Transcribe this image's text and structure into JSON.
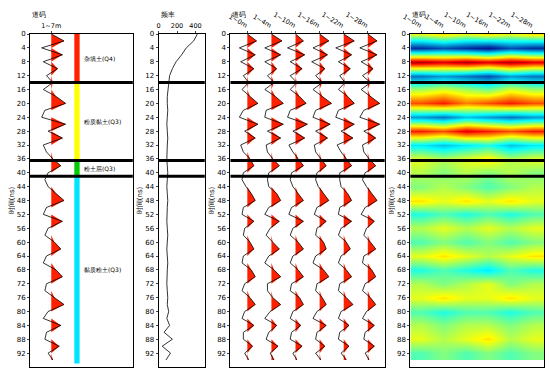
{
  "time": {
    "title": "时间(ns)",
    "ylim": [
      96,
      0
    ],
    "yticks": [
      0,
      4,
      8,
      12,
      16,
      20,
      24,
      28,
      32,
      36,
      40,
      44,
      48,
      52,
      56,
      60,
      64,
      68,
      72,
      76,
      80,
      84,
      88,
      92
    ],
    "samples": [
      0,
      2,
      4,
      6,
      8,
      10,
      12,
      14,
      16,
      18,
      20,
      22,
      24,
      26,
      28,
      30,
      32,
      34,
      36,
      38,
      40,
      42,
      44,
      46,
      48,
      50,
      52,
      54,
      56,
      58,
      60,
      62,
      64,
      66,
      68,
      70,
      72,
      74,
      76,
      78,
      80,
      82,
      84,
      86,
      88,
      90,
      92,
      94
    ]
  },
  "boundaries": [
    14,
    36.5,
    41
  ],
  "chart_data": [
    {
      "type": "wiggle",
      "header": "道码",
      "color": "#ff2000",
      "series": [
        {
          "name": "1~7m",
          "values": [
            0,
            0.8,
            -0.6,
            0.7,
            -0.5,
            0.4,
            -0.3,
            0.1,
            -0.5,
            0.3,
            0.9,
            -0.4,
            -0.6,
            0.9,
            -0.2,
            0.7,
            -0.5,
            -0.3,
            0.1,
            0.6,
            -0.2,
            -0.4,
            -0.2,
            0.3,
            0.8,
            -0.3,
            -0.5,
            0.7,
            -0.2,
            -0.4,
            0.2,
            0.6,
            -0.3,
            -0.5,
            0.3,
            0.7,
            -0.3,
            -0.4,
            0.2,
            0.8,
            -0.2,
            -0.5,
            0.6,
            -0.3,
            -0.4,
            0.5,
            -0.2,
            0.1
          ]
        }
      ],
      "layers": [
        {
          "label": "杂填土(Q4)",
          "ylim": [
            0,
            14
          ],
          "color": "#ff2200"
        },
        {
          "label": "粉质黏土(Q3)",
          "ylim": [
            14,
            36.5
          ],
          "color": "#ffff00"
        },
        {
          "label": "粉土层(Q3)",
          "ylim": [
            36.5,
            41
          ],
          "color": "#00cc00"
        },
        {
          "label": "黏质粉土(Q3)",
          "ylim": [
            41,
            95
          ],
          "color": "#00e5ff"
        }
      ]
    },
    {
      "type": "line",
      "header": "频率",
      "color": "#000000",
      "xlim": [
        0,
        500
      ],
      "xticks": [
        0,
        200,
        400
      ],
      "values": [
        420,
        380,
        300,
        250,
        190,
        150,
        120,
        110,
        100,
        95,
        95,
        100,
        95,
        90,
        95,
        100,
        95,
        90,
        90,
        95,
        100,
        95,
        90,
        95,
        100,
        95,
        90,
        90,
        95,
        100,
        95,
        90,
        95,
        100,
        95,
        90,
        90,
        95,
        100,
        95,
        110,
        90,
        120,
        60,
        150,
        40,
        130,
        80
      ]
    },
    {
      "type": "wiggle",
      "header": "道码",
      "color": "#ff2000",
      "series": [
        {
          "name": "1~0m",
          "values": [
            0,
            0.7,
            -0.6,
            0.6,
            -0.5,
            0.5,
            -0.3,
            0.1,
            -0.4,
            0.2,
            0.8,
            -0.3,
            -0.6,
            0.8,
            -0.2,
            0.6,
            -0.5,
            -0.3,
            0.2,
            0.5,
            -0.3,
            -0.4,
            -0.1,
            0.3,
            0.6,
            -0.3,
            -0.4,
            0.5,
            -0.2,
            -0.3,
            0.2,
            0.5,
            -0.3,
            -0.4,
            0.3,
            0.6,
            -0.2,
            -0.4,
            0.2,
            0.6,
            -0.2,
            -0.4,
            0.5,
            -0.3,
            -0.3,
            0.4,
            -0.2,
            0.1
          ]
        },
        {
          "name": "1~4m",
          "values": [
            0,
            0.8,
            -0.5,
            0.7,
            -0.5,
            0.4,
            -0.3,
            0.2,
            -0.5,
            0.3,
            0.9,
            -0.4,
            -0.5,
            0.9,
            -0.3,
            0.7,
            -0.4,
            -0.3,
            0.1,
            0.6,
            -0.2,
            -0.3,
            -0.2,
            0.4,
            0.7,
            -0.2,
            -0.5,
            0.6,
            -0.1,
            -0.4,
            0.1,
            0.6,
            -0.2,
            -0.5,
            0.2,
            0.7,
            -0.3,
            -0.3,
            0.1,
            0.7,
            -0.1,
            -0.5,
            0.4,
            -0.2,
            -0.4,
            0.5,
            -0.1,
            0.2
          ]
        },
        {
          "name": "1~10m",
          "values": [
            0,
            0.6,
            -0.6,
            0.7,
            -0.4,
            0.5,
            -0.4,
            0.1,
            -0.4,
            0.3,
            0.8,
            -0.4,
            -0.6,
            0.9,
            -0.2,
            0.7,
            -0.5,
            -0.2,
            0.2,
            0.6,
            -0.3,
            -0.4,
            -0.2,
            0.2,
            0.6,
            -0.3,
            -0.5,
            0.6,
            -0.2,
            -0.4,
            0.2,
            0.6,
            -0.2,
            -0.4,
            0.2,
            0.6,
            -0.3,
            -0.4,
            0.3,
            0.6,
            -0.2,
            -0.4,
            0.4,
            -0.3,
            -0.4,
            0.5,
            -0.2,
            0.1
          ]
        },
        {
          "name": "1~16m",
          "values": [
            0,
            0.7,
            -0.5,
            0.6,
            -0.6,
            0.4,
            -0.3,
            0.2,
            -0.5,
            0.2,
            0.9,
            -0.3,
            -0.5,
            0.8,
            -0.3,
            0.6,
            -0.4,
            -0.3,
            0.1,
            0.5,
            -0.2,
            -0.3,
            -0.1,
            0.3,
            0.7,
            -0.2,
            -0.4,
            0.5,
            -0.2,
            -0.3,
            0.3,
            0.5,
            -0.3,
            -0.5,
            0.3,
            0.7,
            -0.2,
            -0.3,
            0.2,
            0.5,
            -0.2,
            -0.5,
            0.5,
            -0.2,
            -0.3,
            0.4,
            -0.3,
            0.1
          ]
        },
        {
          "name": "1~22m",
          "values": [
            0,
            0.8,
            -0.6,
            0.6,
            -0.4,
            0.5,
            -0.3,
            0.1,
            -0.4,
            0.3,
            0.8,
            -0.4,
            -0.6,
            0.8,
            -0.2,
            0.7,
            -0.5,
            -0.2,
            0.2,
            0.6,
            -0.3,
            -0.3,
            -0.2,
            0.3,
            0.6,
            -0.3,
            -0.4,
            0.6,
            -0.2,
            -0.4,
            0.2,
            0.5,
            -0.2,
            -0.4,
            0.2,
            0.6,
            -0.3,
            -0.4,
            0.2,
            0.7,
            -0.2,
            -0.4,
            0.4,
            -0.3,
            -0.4,
            0.4,
            -0.2,
            0.2
          ]
        },
        {
          "name": "1~28m",
          "values": [
            0,
            0.7,
            -0.6,
            0.7,
            -0.5,
            0.4,
            -0.4,
            0.2,
            -0.5,
            0.2,
            0.9,
            -0.3,
            -0.6,
            0.9,
            -0.3,
            0.6,
            -0.4,
            -0.3,
            0.1,
            0.6,
            -0.2,
            -0.4,
            -0.1,
            0.3,
            0.7,
            -0.2,
            -0.5,
            0.5,
            -0.1,
            -0.3,
            0.2,
            0.6,
            -0.3,
            -0.4,
            0.3,
            0.6,
            -0.2,
            -0.4,
            0.2,
            0.6,
            -0.1,
            -0.4,
            0.5,
            -0.2,
            -0.3,
            0.5,
            -0.2,
            0.1
          ]
        }
      ]
    },
    {
      "type": "heatmap",
      "header": "道码",
      "categories": [
        "1~0m",
        "1~4m",
        "1~10m",
        "1~16m",
        "1~22m",
        "1~28m"
      ],
      "y": [
        0,
        4,
        8,
        12,
        16,
        20,
        24,
        28,
        32,
        36,
        40,
        44,
        48,
        52,
        56,
        60,
        64,
        68,
        72,
        76,
        80,
        84,
        88,
        92
      ],
      "zlim": [
        -1,
        1
      ],
      "cells": [
        [
          0.2,
          0.3,
          0.2,
          0.3,
          0.2,
          0.3
        ],
        [
          -0.8,
          -0.7,
          -0.8,
          -0.9,
          -0.7,
          -0.8
        ],
        [
          0.9,
          0.8,
          0.9,
          0.8,
          0.9,
          0.8
        ],
        [
          -0.6,
          -0.5,
          -0.6,
          -0.7,
          -0.5,
          -0.6
        ],
        [
          0.1,
          0.2,
          0.1,
          0.0,
          0.2,
          0.1
        ],
        [
          0.6,
          0.7,
          0.5,
          0.6,
          0.7,
          0.6
        ],
        [
          -0.5,
          -0.6,
          -0.4,
          -0.5,
          -0.6,
          -0.5
        ],
        [
          0.7,
          0.6,
          0.8,
          0.7,
          0.6,
          0.7
        ],
        [
          -0.3,
          -0.4,
          -0.3,
          -0.2,
          -0.4,
          -0.3
        ],
        [
          0.2,
          0.1,
          0.2,
          0.3,
          0.1,
          0.2
        ],
        [
          0.1,
          0.0,
          0.1,
          0.0,
          0.1,
          0.0
        ],
        [
          0.0,
          0.1,
          0.0,
          -0.1,
          0.0,
          0.1
        ],
        [
          0.3,
          0.2,
          0.3,
          0.2,
          0.3,
          0.2
        ],
        [
          -0.2,
          -0.1,
          -0.2,
          -0.1,
          -0.2,
          -0.1
        ],
        [
          0.1,
          0.2,
          0.1,
          0.2,
          0.1,
          0.2
        ],
        [
          -0.1,
          0.0,
          -0.1,
          0.0,
          -0.1,
          0.0
        ],
        [
          0.2,
          0.3,
          0.2,
          0.1,
          0.2,
          0.3
        ],
        [
          -0.2,
          -0.1,
          -0.2,
          -0.3,
          -0.1,
          -0.2
        ],
        [
          0.1,
          0.0,
          0.1,
          0.2,
          0.0,
          0.1
        ],
        [
          0.2,
          0.3,
          0.2,
          0.2,
          0.3,
          0.2
        ],
        [
          -0.1,
          -0.2,
          -0.1,
          -0.1,
          -0.2,
          -0.1
        ],
        [
          0.1,
          0.0,
          0.1,
          0.1,
          0.0,
          0.1
        ],
        [
          0.2,
          0.1,
          0.2,
          0.3,
          0.1,
          0.2
        ],
        [
          -0.1,
          0.0,
          -0.1,
          0.0,
          -0.1,
          0.0
        ]
      ]
    }
  ]
}
